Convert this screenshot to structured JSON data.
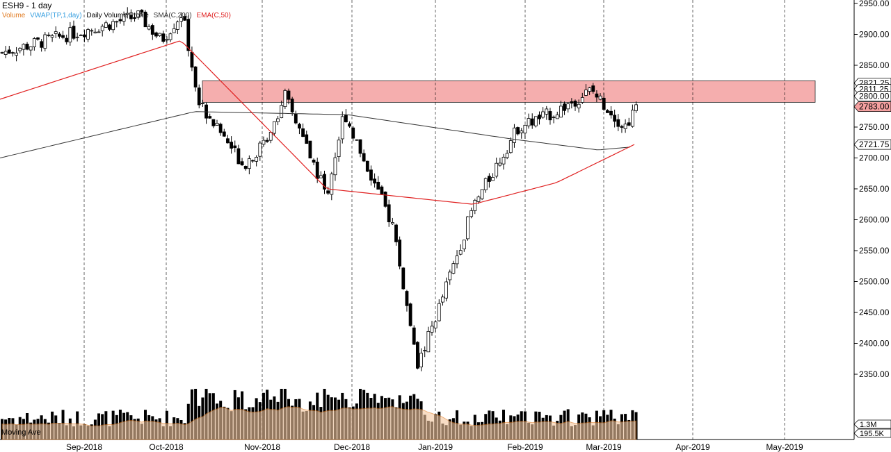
{
  "chart_title": "ESH9 - 1 day",
  "indicators": [
    {
      "label": "Volume",
      "color": "#e07a20"
    },
    {
      "label": "VWAP(TP,1,day)",
      "color": "#39a0e0"
    },
    {
      "label": "Daily Volume Profile",
      "color": "#000000"
    },
    {
      "label": "SMA(C,200)",
      "color": "#333333"
    },
    {
      "label": "EMA(C,50)",
      "color": "#e02020"
    }
  ],
  "volume_panel_label": "Moving Ave",
  "chart_data": {
    "type": "candlestick",
    "x_tick_labels": [
      "Sep-2018",
      "Oct-2018",
      "Nov-2018",
      "Dec-2018",
      "Jan-2019",
      "Feb-2019",
      "Mar-2019",
      "Apr-2019",
      "May-2019"
    ],
    "y_tick_labels": [
      "2350.00",
      "2400.00",
      "2450.00",
      "2500.00",
      "2550.00",
      "2600.00",
      "2650.00",
      "2700.00",
      "2750.00",
      "2800.00",
      "2850.00",
      "2900.00",
      "2950.00"
    ],
    "ylim": [
      2328,
      2954
    ],
    "price_tags": [
      {
        "label": "2821.25",
        "value": 2821.25
      },
      {
        "label": "2811.25",
        "value": 2811.25
      },
      {
        "label": "2800.00",
        "value": 2800.0
      },
      {
        "label": "2783.00",
        "value": 2783.0,
        "highlight": true
      },
      {
        "label": "2721.75",
        "value": 2721.75
      }
    ],
    "resistance_zone": {
      "top": 2825,
      "bottom": 2790,
      "start": "Oct-2018",
      "color": "#f4a0a0"
    },
    "volume_axis_labels": [
      "1.3M",
      "195.5K"
    ],
    "grid": "vertical dashed at month starts",
    "close_path": [
      2870,
      2930,
      2890,
      2935,
      2790,
      2690,
      2720,
      2800,
      2640,
      2775,
      2700,
      2590,
      2360,
      2470,
      2620,
      2750,
      2775,
      2810,
      2750,
      2783
    ],
    "sma200_path": [
      2700,
      2775,
      2770,
      2730,
      2713,
      2718
    ],
    "ema50_path": [
      2795,
      2890,
      2650,
      2625,
      2660,
      2721.75
    ]
  }
}
